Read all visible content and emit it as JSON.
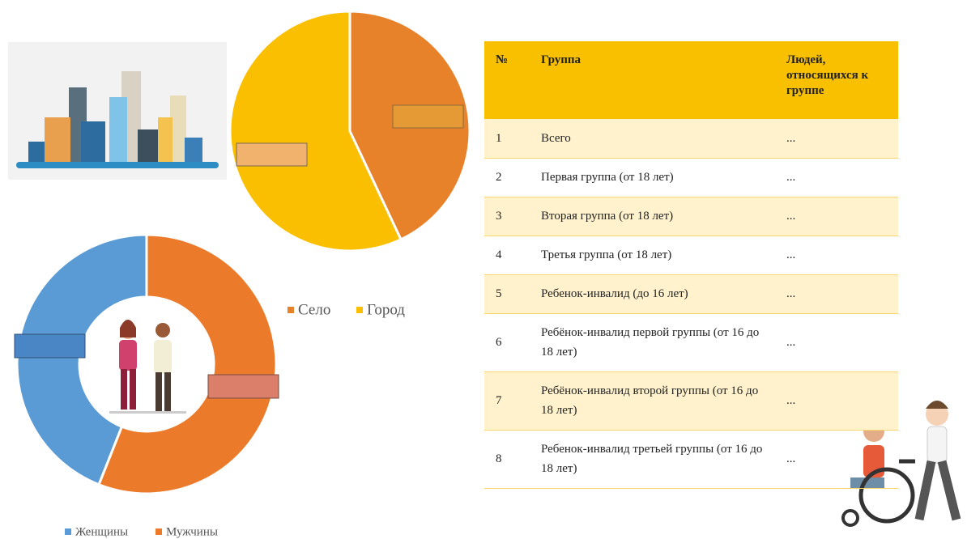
{
  "chart_data": [
    {
      "type": "pie",
      "categories": [
        "Село",
        "Город"
      ],
      "values": [
        43,
        57
      ],
      "colors": [
        "#E8822A",
        "#F9BF00"
      ]
    },
    {
      "type": "donut",
      "categories": [
        "Женщины",
        "Мужчины"
      ],
      "values": [
        44,
        56
      ],
      "colors": [
        "#5B9BD5",
        "#EB7A2A"
      ]
    }
  ],
  "table": {
    "header": [
      "№",
      "Группа",
      "Людей, относящихся к группе"
    ],
    "rows": [
      [
        "1",
        "Всего",
        "..."
      ],
      [
        "2",
        "Первая группа (от 18 лет)",
        "..."
      ],
      [
        "3",
        "Вторая группа (от 18 лет)",
        "..."
      ],
      [
        "4",
        "Третья группа (от 18 лет)",
        "..."
      ],
      [
        "5",
        "Ребенок-инвалид (до 16 лет)",
        "..."
      ],
      [
        "6",
        "Ребёнок-инвалид первой группы (от 16 до 18 лет)",
        "..."
      ],
      [
        "7",
        "Ребёнок-инвалид второй группы (от 16 до 18 лет)",
        "..."
      ],
      [
        "8",
        "Ребенок-инвалид третьей группы (от 16 до 18 лет)",
        "..."
      ]
    ]
  }
}
